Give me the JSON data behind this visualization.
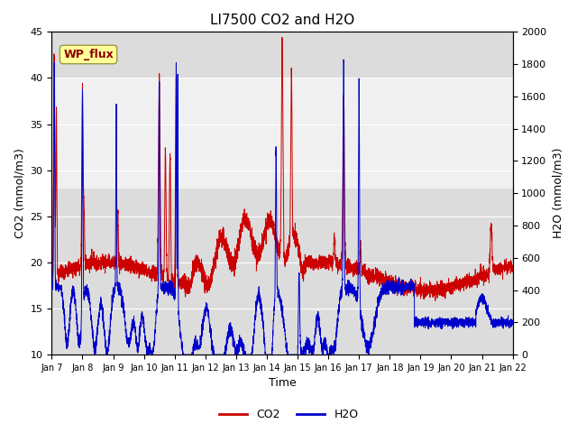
{
  "title": "LI7500 CO2 and H2O",
  "xlabel": "Time",
  "ylabel_left": "CO2 (mmol/m3)",
  "ylabel_right": "H2O (mmol/m3)",
  "annotation": "WP_flux",
  "xlim_days": [
    7,
    22
  ],
  "ylim_left": [
    10,
    45
  ],
  "ylim_right": [
    0,
    2000
  ],
  "yticks_left": [
    10,
    15,
    20,
    25,
    30,
    35,
    40,
    45
  ],
  "yticks_right": [
    0,
    200,
    400,
    600,
    800,
    1000,
    1200,
    1400,
    1600,
    1800,
    2000
  ],
  "xtick_positions": [
    7,
    8,
    9,
    10,
    11,
    12,
    13,
    14,
    15,
    16,
    17,
    18,
    19,
    20,
    21,
    22
  ],
  "xtick_labels": [
    "Jan 7",
    "Jan 8",
    "Jan 9",
    "Jan 10",
    "Jan 11",
    "Jan 12",
    "Jan 13",
    "Jan 14",
    "Jan 15",
    "Jan 16",
    "Jan 17",
    "Jan 18",
    "Jan 19",
    "Jan 20",
    "Jan 21",
    "Jan 22"
  ],
  "co2_color": "#cc0000",
  "h2o_color": "#0000cc",
  "bg_color": "#ffffff",
  "plot_bg_color": "#dcdcdc",
  "plot_bg_light": "#f0f0f0",
  "annotation_bg": "#ffff99",
  "annotation_color": "#8b0000",
  "annotation_edge": "#999944",
  "legend_entries": [
    "CO2",
    "H2O"
  ],
  "title_fontsize": 11,
  "label_fontsize": 9,
  "tick_fontsize": 8,
  "annotation_fontsize": 9,
  "legend_fontsize": 9,
  "linewidth": 0.7,
  "fig_width": 6.4,
  "fig_height": 4.8,
  "dpi": 100
}
